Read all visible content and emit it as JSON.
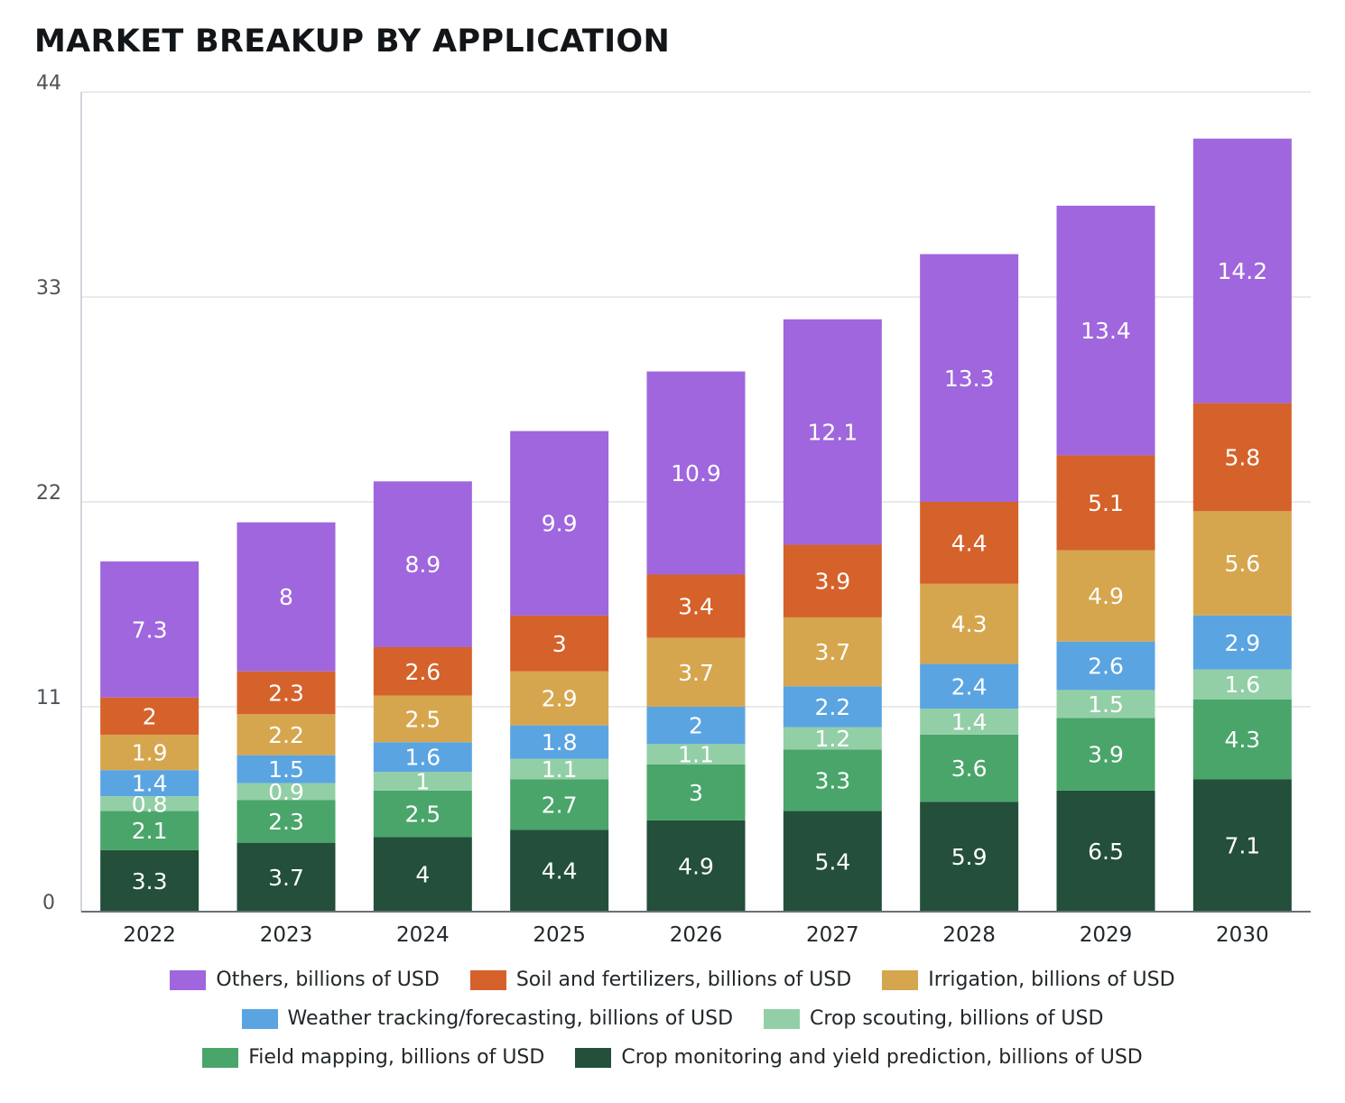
{
  "chart_data": {
    "type": "bar",
    "stacked": true,
    "title": "MARKET BREAKUP BY APPLICATION",
    "categories": [
      "2022",
      "2023",
      "2024",
      "2025",
      "2026",
      "2027",
      "2028",
      "2029",
      "2030"
    ],
    "ylim": [
      0,
      44
    ],
    "yticks": [
      "0",
      "11",
      "22",
      "33",
      "44"
    ],
    "grid": true,
    "legend_position": "bottom",
    "series": [
      {
        "name": "Crop monitoring and yield prediction, billions of USD",
        "color": "#234f3b",
        "values": [
          3.3,
          3.7,
          4,
          4.4,
          4.9,
          5.4,
          5.9,
          6.5,
          7.1
        ]
      },
      {
        "name": "Field mapping, billions of USD",
        "color": "#4aa56a",
        "values": [
          2.1,
          2.3,
          2.5,
          2.7,
          3,
          3.3,
          3.6,
          3.9,
          4.3
        ]
      },
      {
        "name": "Crop scouting, billions of USD",
        "color": "#93cfa6",
        "values": [
          0.8,
          0.9,
          1,
          1.1,
          1.1,
          1.2,
          1.4,
          1.5,
          1.6
        ]
      },
      {
        "name": "Weather tracking/forecasting, billions of USD",
        "color": "#5aa4e2",
        "values": [
          1.4,
          1.5,
          1.6,
          1.8,
          2,
          2.2,
          2.4,
          2.6,
          2.9
        ]
      },
      {
        "name": "Irrigation, billions of USD",
        "color": "#d6a64e",
        "values": [
          1.9,
          2.2,
          2.5,
          2.9,
          3.7,
          3.7,
          4.3,
          4.9,
          5.6
        ]
      },
      {
        "name": "Soil and fertilizers, billions of USD",
        "color": "#d5622a",
        "values": [
          2,
          2.3,
          2.6,
          3,
          3.4,
          3.9,
          4.4,
          5.1,
          5.8
        ]
      },
      {
        "name": "Others, billions of USD",
        "color": "#9f66dd",
        "values": [
          7.3,
          8,
          8.9,
          9.9,
          10.9,
          12.1,
          13.3,
          13.4,
          14.2
        ]
      }
    ],
    "legend_rows": [
      [
        "Others, billions of USD",
        "Soil and fertilizers, billions of USD",
        "Irrigation, billions of USD"
      ],
      [
        "Weather tracking/forecasting, billions of USD",
        "Crop scouting, billions of USD"
      ],
      [
        "Field mapping, billions of USD",
        "Crop monitoring and yield prediction, billions of USD"
      ]
    ]
  }
}
